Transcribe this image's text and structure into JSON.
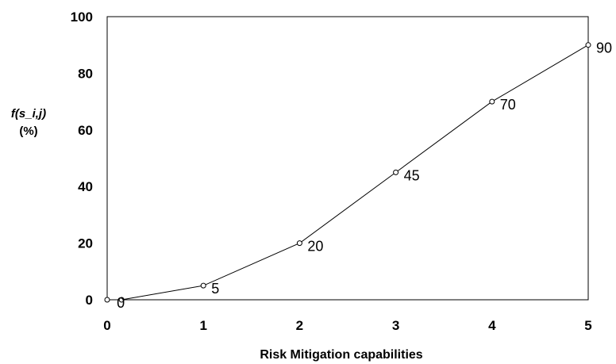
{
  "chart_data": {
    "type": "line",
    "xlabel": "Risk Mitigation capabilities",
    "ylabel_line1": "f(s_i,j)",
    "ylabel_line2": "(%)",
    "xlim": [
      0,
      5
    ],
    "ylim": [
      0,
      100
    ],
    "x_ticks": [
      "0",
      "1",
      "2",
      "3",
      "4",
      "5"
    ],
    "y_ticks": [
      "0",
      "20",
      "40",
      "60",
      "80",
      "100"
    ],
    "grid": false,
    "legend": "none",
    "series": [
      {
        "x": [
          0,
          0.15,
          1,
          2,
          3,
          4,
          5
        ],
        "values": [
          0,
          0,
          5,
          20,
          45,
          70,
          90
        ],
        "labels": [
          "",
          "0",
          "5",
          "20",
          "45",
          "70",
          "90"
        ]
      }
    ],
    "colors": {
      "line": "#000000",
      "marker_fill": "#ffffff"
    }
  }
}
